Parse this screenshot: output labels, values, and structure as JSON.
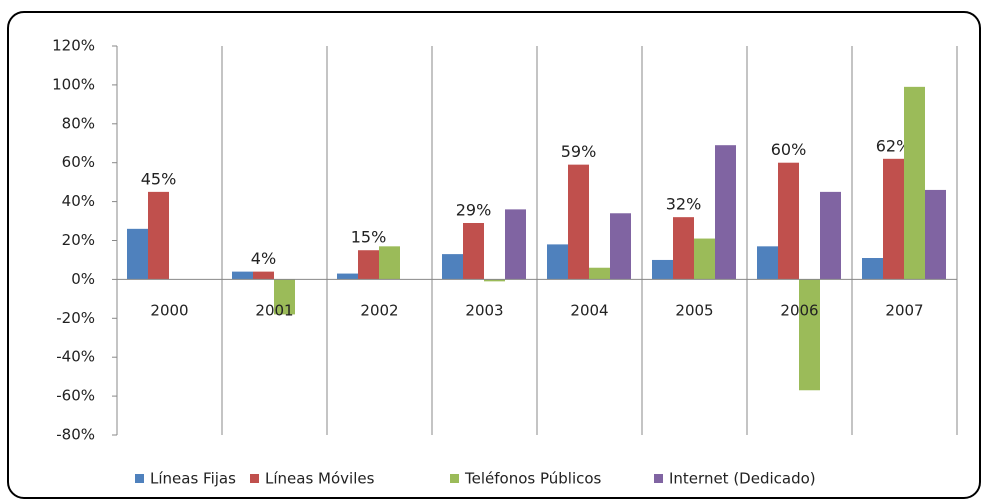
{
  "chart_data": {
    "type": "bar",
    "categories": [
      "2000",
      "2001",
      "2002",
      "2003",
      "2004",
      "2005",
      "2006",
      "2007"
    ],
    "series": [
      {
        "name": "Líneas Fijas",
        "color": "#4f81bd",
        "values": [
          26,
          4,
          3,
          13,
          18,
          10,
          17,
          11
        ]
      },
      {
        "name": "Líneas Móviles",
        "color": "#c0504d",
        "values": [
          45,
          4,
          15,
          29,
          59,
          32,
          60,
          62
        ],
        "value_labels": [
          "45%",
          "4%",
          "15%",
          "29%",
          "59%",
          "32%",
          "60%",
          "62%"
        ]
      },
      {
        "name": "Teléfonos Públicos",
        "color": "#9bbb59",
        "values": [
          null,
          -18,
          17,
          -1,
          6,
          21,
          -57,
          99
        ]
      },
      {
        "name": "Internet (Dedicado)",
        "color": "#8064a2",
        "values": [
          null,
          null,
          null,
          36,
          34,
          69,
          45,
          46
        ]
      }
    ],
    "ylim": [
      -80,
      120
    ],
    "yticks": [
      {
        "value": -80,
        "label": "-80%"
      },
      {
        "value": -60,
        "label": "-60%"
      },
      {
        "value": -40,
        "label": "-40%"
      },
      {
        "value": -20,
        "label": "-20%"
      },
      {
        "value": 0,
        "label": "0%"
      },
      {
        "value": 20,
        "label": "20%"
      },
      {
        "value": 40,
        "label": "40%"
      },
      {
        "value": 60,
        "label": "60%"
      },
      {
        "value": 80,
        "label": "80%"
      },
      {
        "value": 100,
        "label": "100%"
      },
      {
        "value": 120,
        "label": "120%"
      }
    ],
    "legend": "bottom"
  }
}
